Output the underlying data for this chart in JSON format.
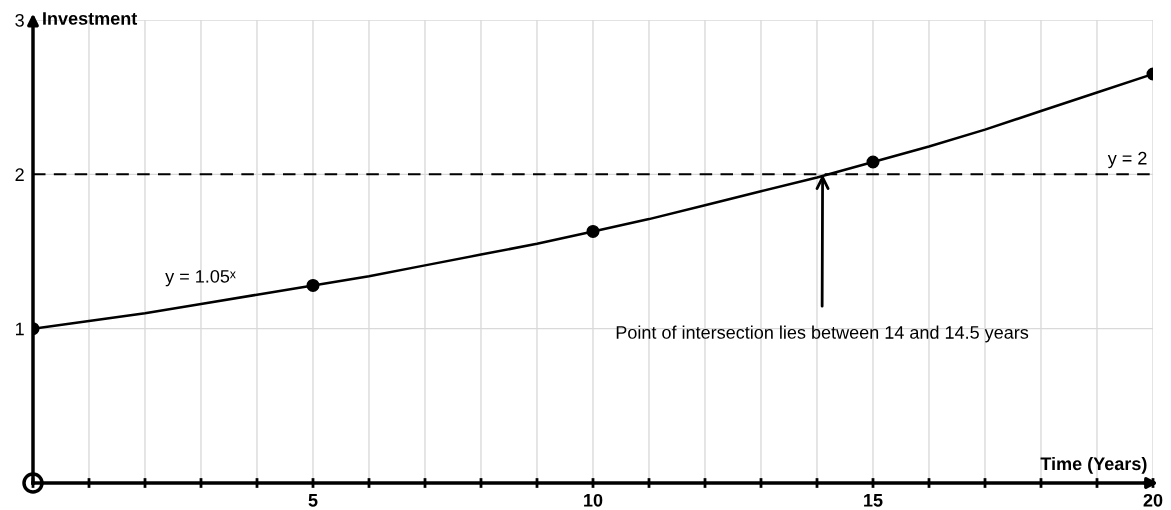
{
  "chart_data": {
    "type": "line",
    "xlabel": "Time (Years)",
    "ylabel": "Investment",
    "x": [
      0,
      1,
      2,
      3,
      4,
      5,
      6,
      7,
      8,
      9,
      10,
      11,
      12,
      13,
      14,
      15,
      16,
      17,
      18,
      19,
      20
    ],
    "series": [
      {
        "color": "#000000",
        "marker": "none",
        "values": [
          1.0,
          1.05,
          1.1,
          1.16,
          1.22,
          1.28,
          1.34,
          1.41,
          1.48,
          1.55,
          1.63,
          1.71,
          1.8,
          1.89,
          1.98,
          2.08,
          2.18,
          2.29,
          2.41,
          2.53,
          2.65
        ]
      },
      {
        "type": "scatter",
        "color": "#000000",
        "marker": "circle",
        "x": [
          0,
          5,
          10,
          15,
          20
        ],
        "values": [
          1.0,
          1.28,
          1.63,
          2.08,
          2.65
        ]
      }
    ],
    "xlim": [
      0,
      20
    ],
    "ylim": [
      0,
      3
    ],
    "xticks": [
      {
        "value": 0,
        "label": null
      },
      {
        "value": 1,
        "label": null
      },
      {
        "value": 2,
        "label": null
      },
      {
        "value": 3,
        "label": null
      },
      {
        "value": 4,
        "label": null
      },
      5,
      {
        "value": 6,
        "label": null
      },
      {
        "value": 7,
        "label": null
      },
      {
        "value": 8,
        "label": null
      },
      {
        "value": 9,
        "label": null
      },
      10,
      {
        "value": 11,
        "label": null
      },
      {
        "value": 12,
        "label": null
      },
      {
        "value": 13,
        "label": null
      },
      {
        "value": 14,
        "label": null
      },
      15,
      {
        "value": 16,
        "label": null
      },
      {
        "value": 17,
        "label": null
      },
      {
        "value": 18,
        "label": null
      },
      {
        "value": 19,
        "label": null
      },
      20
    ],
    "yticks": [
      {
        "value": 0,
        "label": null
      },
      1,
      2,
      3
    ],
    "grid": true,
    "ref_lines": [
      {
        "axis": "y",
        "value": 2,
        "label": "y = 2",
        "color": "#000000",
        "line_style": "dashed"
      }
    ],
    "annotations": [
      "y = 1.05ˣ",
      {
        "text": "Point of intersection lies between 14 and 14.5 years",
        "x": 14.1,
        "y": 2
      }
    ]
  }
}
